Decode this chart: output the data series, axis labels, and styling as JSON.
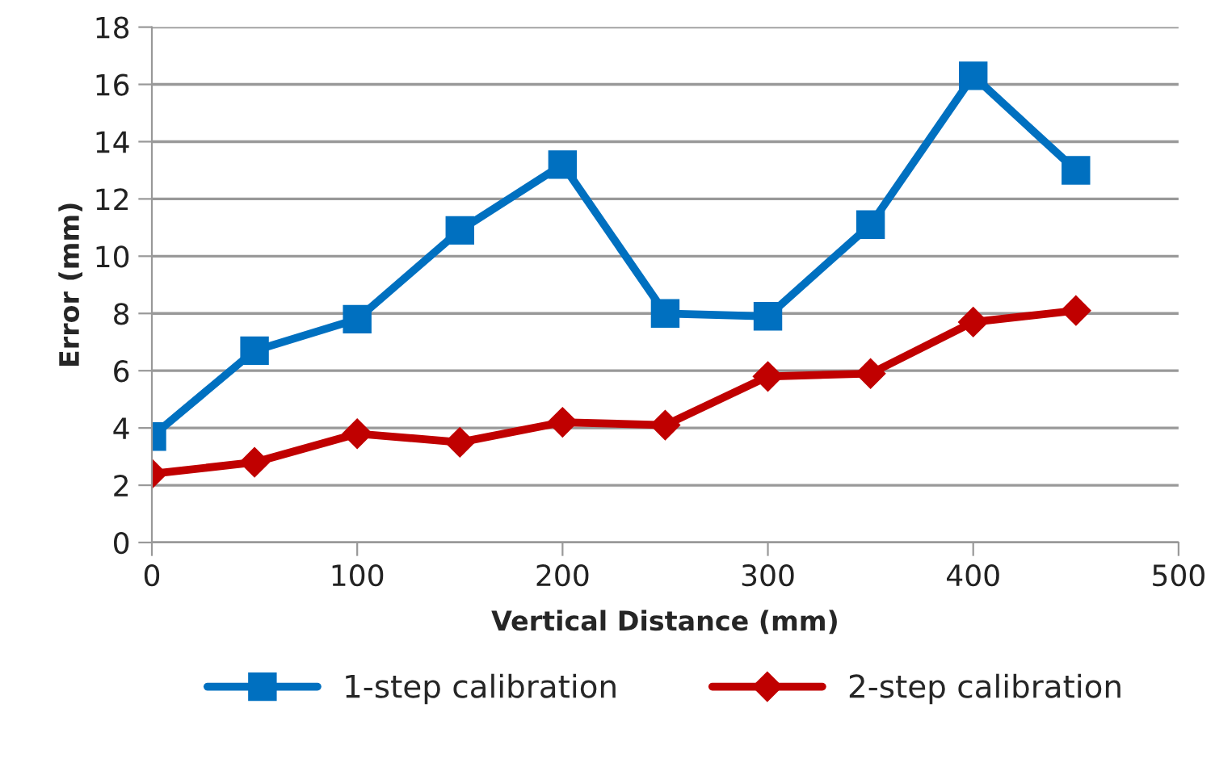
{
  "chart_data": {
    "type": "line",
    "xlabel": "Vertical Distance (mm)",
    "ylabel": "Error (mm)",
    "x": [
      0,
      50,
      100,
      150,
      200,
      250,
      300,
      350,
      400,
      450
    ],
    "series": [
      {
        "name": "1-step calibration",
        "color": "#0070c0",
        "marker": "square",
        "values": [
          3.7,
          6.7,
          7.8,
          10.9,
          13.2,
          8.0,
          7.9,
          11.1,
          16.3,
          13.0
        ]
      },
      {
        "name": "2-step calibration",
        "color": "#c00000",
        "marker": "diamond",
        "values": [
          2.4,
          2.8,
          3.8,
          3.5,
          4.2,
          4.1,
          5.8,
          5.9,
          7.7,
          8.1
        ]
      }
    ],
    "xlim": [
      0,
      500
    ],
    "xticks": [
      0,
      100,
      200,
      300,
      400,
      500
    ],
    "ylim": [
      0,
      18
    ],
    "yticks": [
      0,
      2,
      4,
      6,
      8,
      10,
      12,
      14,
      16,
      18
    ],
    "grid": "y",
    "legend": "bottom",
    "line_style": "solid"
  }
}
